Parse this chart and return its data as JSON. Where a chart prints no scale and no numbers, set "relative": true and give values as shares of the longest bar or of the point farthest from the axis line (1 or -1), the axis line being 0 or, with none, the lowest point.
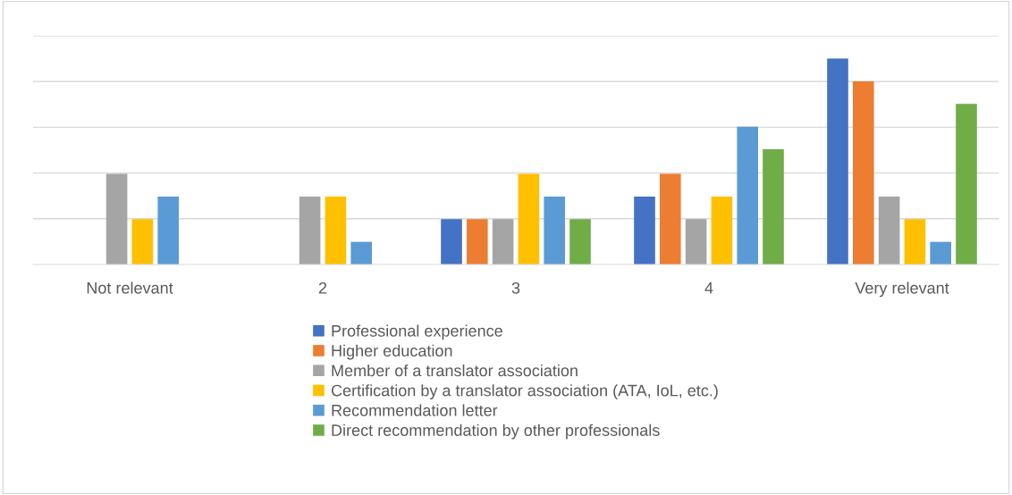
{
  "chart_data": {
    "type": "bar",
    "relative": true,
    "grid": "y",
    "legend": "bottom",
    "categories": [
      "Not relevant",
      "2",
      "3",
      "4",
      "Very relevant"
    ],
    "series": [
      {
        "name": "Professional experience",
        "color": "#4472c4",
        "values": [
          0,
          0,
          0.22,
          0.33,
          1
        ]
      },
      {
        "name": "Higher education",
        "color": "#ed7d31",
        "values": [
          0,
          0,
          0.22,
          0.44,
          0.89
        ]
      },
      {
        "name": "Member of a translator association",
        "color": "#a5a5a5",
        "values": [
          0.44,
          0.33,
          0.22,
          0.22,
          0.33
        ]
      },
      {
        "name": "Certification by a translator association (ATA, IoL, etc.)",
        "color": "#ffc000",
        "values": [
          0.22,
          0.33,
          0.44,
          0.33,
          0.22
        ]
      },
      {
        "name": "Recommendation letter",
        "color": "#5b9bd5",
        "values": [
          0.33,
          0.11,
          0.33,
          0.67,
          0.11
        ]
      },
      {
        "name": "Direct recommendation by other professionals",
        "color": "#70ad47",
        "values": [
          0,
          0,
          0.22,
          0.56,
          0.78
        ]
      }
    ]
  }
}
